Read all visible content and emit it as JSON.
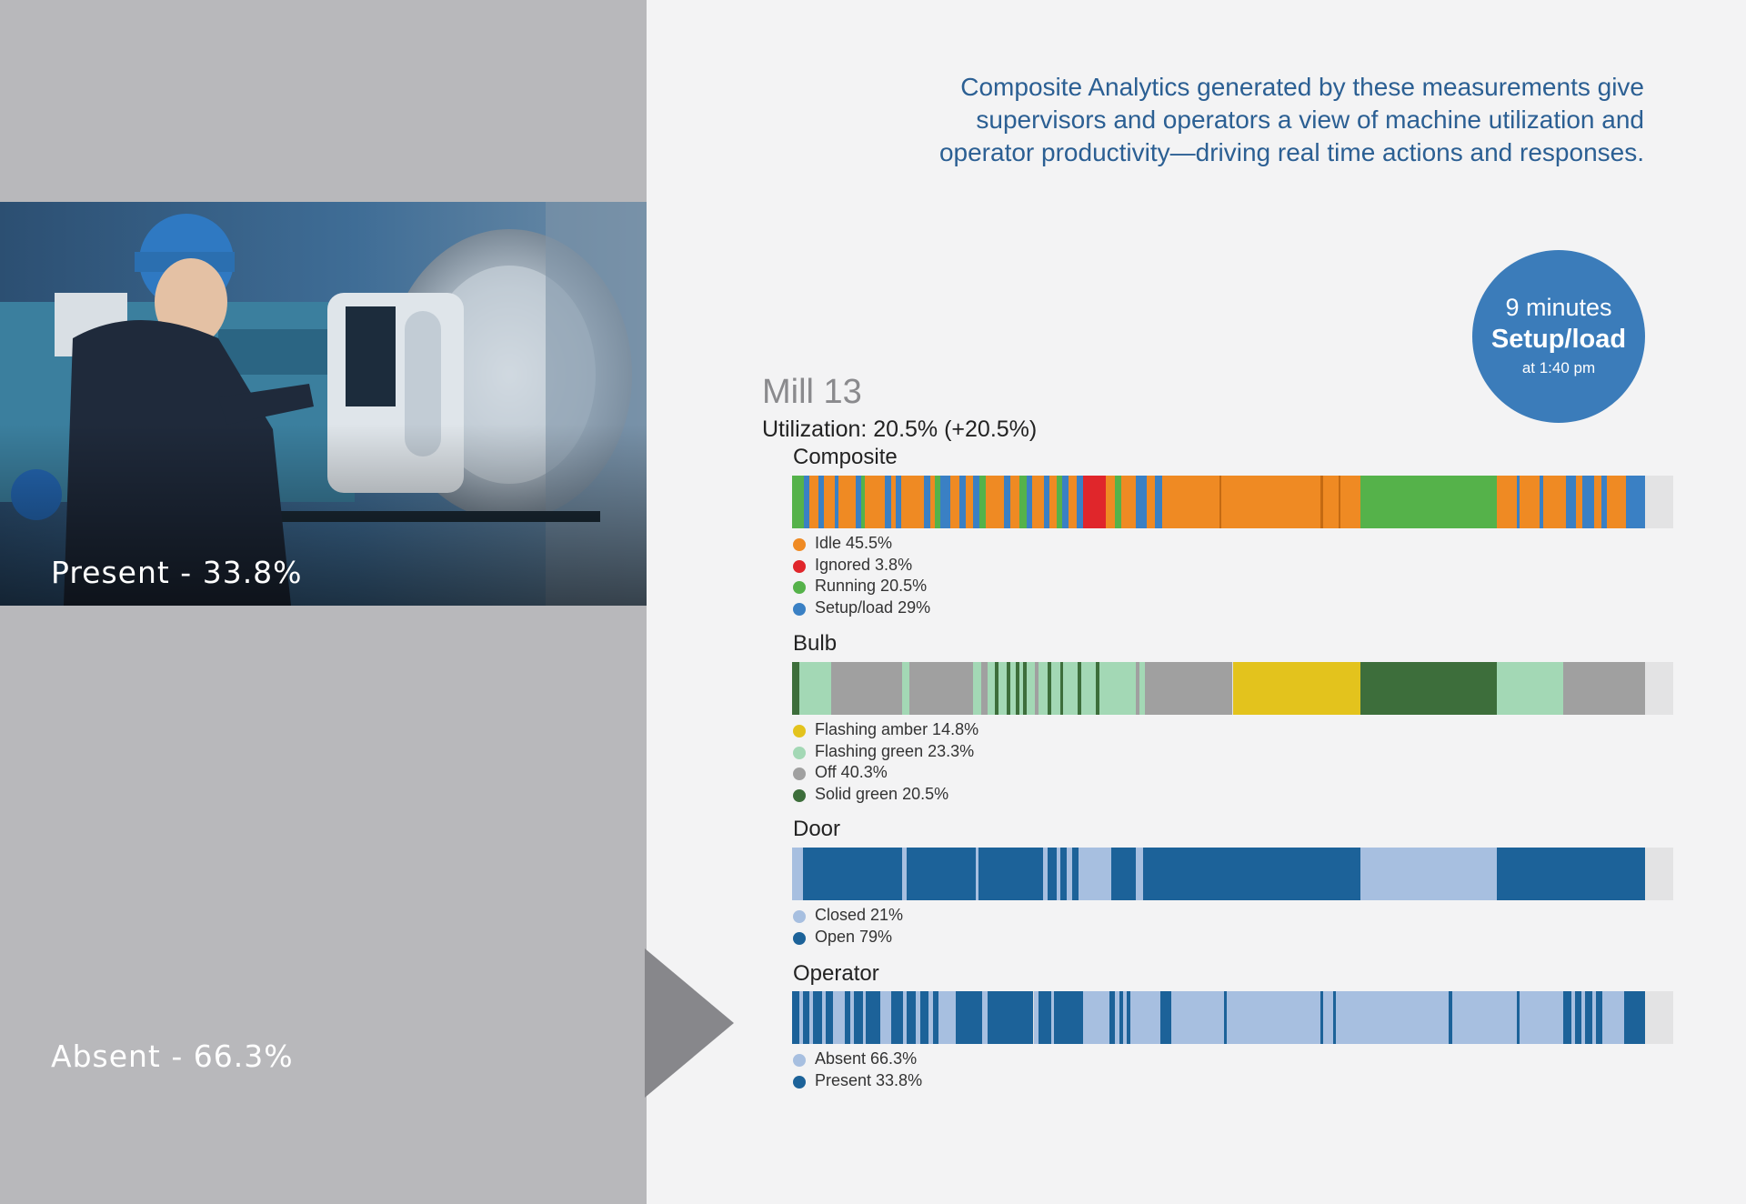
{
  "intro": {
    "line1": "Composite Analytics generated by these measurements give",
    "line2": "supervisors and operators a view of machine utilization and",
    "line3": "operator productivity—driving real time actions and responses."
  },
  "photo_overlay": {
    "present_label": "Present - 33.8%",
    "absent_label": "Absent - 66.3%"
  },
  "badge": {
    "line1": "9 minutes",
    "line2": "Setup/load",
    "line3": "at 1:40 pm"
  },
  "machine": {
    "name": "Mill 13",
    "utilization": "Utilization: 20.5% (+20.5%)"
  },
  "chart_data": [
    {
      "type": "bar",
      "title": "Composite",
      "x_range": [
        0,
        1
      ],
      "legend": [
        {
          "label": "Idle 45.5%",
          "color": "#ef8a23"
        },
        {
          "label": "Ignored 3.8%",
          "color": "#e0262b"
        },
        {
          "label": "Running 20.5%",
          "color": "#55b24a"
        },
        {
          "label": "Setup/load 29%",
          "color": "#3a80c4"
        }
      ],
      "segments": [
        {
          "start": 0.0,
          "end": 0.013,
          "color": "#55b24a"
        },
        {
          "start": 0.013,
          "end": 0.02,
          "color": "#3a80c4"
        },
        {
          "start": 0.02,
          "end": 0.03,
          "color": "#ef8a23"
        },
        {
          "start": 0.03,
          "end": 0.036,
          "color": "#3a80c4"
        },
        {
          "start": 0.036,
          "end": 0.048,
          "color": "#ef8a23"
        },
        {
          "start": 0.048,
          "end": 0.053,
          "color": "#3a80c4"
        },
        {
          "start": 0.053,
          "end": 0.072,
          "color": "#ef8a23"
        },
        {
          "start": 0.072,
          "end": 0.078,
          "color": "#3a80c4"
        },
        {
          "start": 0.078,
          "end": 0.083,
          "color": "#55b24a"
        },
        {
          "start": 0.083,
          "end": 0.105,
          "color": "#ef8a23"
        },
        {
          "start": 0.105,
          "end": 0.112,
          "color": "#3a80c4"
        },
        {
          "start": 0.112,
          "end": 0.118,
          "color": "#ef8a23"
        },
        {
          "start": 0.118,
          "end": 0.124,
          "color": "#3a80c4"
        },
        {
          "start": 0.124,
          "end": 0.15,
          "color": "#ef8a23"
        },
        {
          "start": 0.15,
          "end": 0.157,
          "color": "#3a80c4"
        },
        {
          "start": 0.157,
          "end": 0.162,
          "color": "#ef8a23"
        },
        {
          "start": 0.162,
          "end": 0.168,
          "color": "#55b24a"
        },
        {
          "start": 0.168,
          "end": 0.18,
          "color": "#3a80c4"
        },
        {
          "start": 0.18,
          "end": 0.19,
          "color": "#ef8a23"
        },
        {
          "start": 0.19,
          "end": 0.197,
          "color": "#3a80c4"
        },
        {
          "start": 0.197,
          "end": 0.205,
          "color": "#ef8a23"
        },
        {
          "start": 0.205,
          "end": 0.213,
          "color": "#3a80c4"
        },
        {
          "start": 0.213,
          "end": 0.22,
          "color": "#55b24a"
        },
        {
          "start": 0.22,
          "end": 0.24,
          "color": "#ef8a23"
        },
        {
          "start": 0.24,
          "end": 0.248,
          "color": "#3a80c4"
        },
        {
          "start": 0.248,
          "end": 0.258,
          "color": "#ef8a23"
        },
        {
          "start": 0.258,
          "end": 0.266,
          "color": "#55b24a"
        },
        {
          "start": 0.266,
          "end": 0.272,
          "color": "#3a80c4"
        },
        {
          "start": 0.272,
          "end": 0.286,
          "color": "#ef8a23"
        },
        {
          "start": 0.286,
          "end": 0.292,
          "color": "#3a80c4"
        },
        {
          "start": 0.292,
          "end": 0.3,
          "color": "#ef8a23"
        },
        {
          "start": 0.3,
          "end": 0.306,
          "color": "#55b24a"
        },
        {
          "start": 0.306,
          "end": 0.314,
          "color": "#3a80c4"
        },
        {
          "start": 0.314,
          "end": 0.323,
          "color": "#ef8a23"
        },
        {
          "start": 0.323,
          "end": 0.33,
          "color": "#3a80c4"
        },
        {
          "start": 0.33,
          "end": 0.356,
          "color": "#e0262b"
        },
        {
          "start": 0.356,
          "end": 0.366,
          "color": "#ef8a23"
        },
        {
          "start": 0.366,
          "end": 0.374,
          "color": "#55b24a"
        },
        {
          "start": 0.374,
          "end": 0.39,
          "color": "#ef8a23"
        },
        {
          "start": 0.39,
          "end": 0.402,
          "color": "#3a80c4"
        },
        {
          "start": 0.402,
          "end": 0.412,
          "color": "#ef8a23"
        },
        {
          "start": 0.412,
          "end": 0.42,
          "color": "#3a80c4"
        },
        {
          "start": 0.42,
          "end": 0.485,
          "color": "#ef8a23"
        },
        {
          "start": 0.485,
          "end": 0.487,
          "color": "#c46a12"
        },
        {
          "start": 0.487,
          "end": 0.6,
          "color": "#ef8a23"
        },
        {
          "start": 0.6,
          "end": 0.603,
          "color": "#c46a12"
        },
        {
          "start": 0.603,
          "end": 0.62,
          "color": "#ef8a23"
        },
        {
          "start": 0.62,
          "end": 0.622,
          "color": "#c46a12"
        },
        {
          "start": 0.622,
          "end": 0.645,
          "color": "#ef8a23"
        },
        {
          "start": 0.645,
          "end": 0.8,
          "color": "#55b24a"
        },
        {
          "start": 0.8,
          "end": 0.822,
          "color": "#ef8a23"
        },
        {
          "start": 0.822,
          "end": 0.826,
          "color": "#3a80c4"
        },
        {
          "start": 0.826,
          "end": 0.848,
          "color": "#ef8a23"
        },
        {
          "start": 0.848,
          "end": 0.852,
          "color": "#3a80c4"
        },
        {
          "start": 0.852,
          "end": 0.878,
          "color": "#ef8a23"
        },
        {
          "start": 0.878,
          "end": 0.89,
          "color": "#3a80c4"
        },
        {
          "start": 0.89,
          "end": 0.897,
          "color": "#ef8a23"
        },
        {
          "start": 0.897,
          "end": 0.91,
          "color": "#3a80c4"
        },
        {
          "start": 0.91,
          "end": 0.918,
          "color": "#ef8a23"
        },
        {
          "start": 0.918,
          "end": 0.925,
          "color": "#3a80c4"
        },
        {
          "start": 0.925,
          "end": 0.946,
          "color": "#ef8a23"
        },
        {
          "start": 0.946,
          "end": 0.968,
          "color": "#3a80c4"
        }
      ]
    },
    {
      "type": "bar",
      "title": "Bulb",
      "x_range": [
        0,
        1
      ],
      "legend": [
        {
          "label": "Flashing amber 14.8%",
          "color": "#e3c31d"
        },
        {
          "label": "Flashing green 23.3%",
          "color": "#a3d8b5"
        },
        {
          "label": "Off 40.3%",
          "color": "#a0a0a0"
        },
        {
          "label": "Solid green 20.5%",
          "color": "#3d6e3b"
        }
      ],
      "segments": [
        {
          "start": 0.0,
          "end": 0.008,
          "color": "#3d6e3b"
        },
        {
          "start": 0.008,
          "end": 0.044,
          "color": "#a3d8b5"
        },
        {
          "start": 0.044,
          "end": 0.125,
          "color": "#a0a0a0"
        },
        {
          "start": 0.125,
          "end": 0.133,
          "color": "#a3d8b5"
        },
        {
          "start": 0.133,
          "end": 0.205,
          "color": "#a0a0a0"
        },
        {
          "start": 0.205,
          "end": 0.215,
          "color": "#a3d8b5"
        },
        {
          "start": 0.215,
          "end": 0.222,
          "color": "#a0a0a0"
        },
        {
          "start": 0.222,
          "end": 0.23,
          "color": "#a3d8b5"
        },
        {
          "start": 0.23,
          "end": 0.234,
          "color": "#3d6e3b"
        },
        {
          "start": 0.234,
          "end": 0.244,
          "color": "#a3d8b5"
        },
        {
          "start": 0.244,
          "end": 0.248,
          "color": "#3d6e3b"
        },
        {
          "start": 0.248,
          "end": 0.254,
          "color": "#a3d8b5"
        },
        {
          "start": 0.254,
          "end": 0.258,
          "color": "#3d6e3b"
        },
        {
          "start": 0.258,
          "end": 0.262,
          "color": "#a3d8b5"
        },
        {
          "start": 0.262,
          "end": 0.266,
          "color": "#3d6e3b"
        },
        {
          "start": 0.266,
          "end": 0.276,
          "color": "#a3d8b5"
        },
        {
          "start": 0.276,
          "end": 0.28,
          "color": "#a0a0a0"
        },
        {
          "start": 0.28,
          "end": 0.29,
          "color": "#a3d8b5"
        },
        {
          "start": 0.29,
          "end": 0.294,
          "color": "#3d6e3b"
        },
        {
          "start": 0.294,
          "end": 0.304,
          "color": "#a3d8b5"
        },
        {
          "start": 0.304,
          "end": 0.308,
          "color": "#3d6e3b"
        },
        {
          "start": 0.308,
          "end": 0.324,
          "color": "#a3d8b5"
        },
        {
          "start": 0.324,
          "end": 0.328,
          "color": "#3d6e3b"
        },
        {
          "start": 0.328,
          "end": 0.345,
          "color": "#a3d8b5"
        },
        {
          "start": 0.345,
          "end": 0.349,
          "color": "#3d6e3b"
        },
        {
          "start": 0.349,
          "end": 0.39,
          "color": "#a3d8b5"
        },
        {
          "start": 0.39,
          "end": 0.394,
          "color": "#a0a0a0"
        },
        {
          "start": 0.394,
          "end": 0.4,
          "color": "#a3d8b5"
        },
        {
          "start": 0.4,
          "end": 0.404,
          "color": "#a0a0a0"
        },
        {
          "start": 0.404,
          "end": 0.5,
          "color": "#a0a0a0"
        },
        {
          "start": 0.5,
          "end": 0.645,
          "color": "#e3c31d"
        },
        {
          "start": 0.645,
          "end": 0.8,
          "color": "#3d6e3b"
        },
        {
          "start": 0.8,
          "end": 0.875,
          "color": "#a3d8b5"
        },
        {
          "start": 0.875,
          "end": 0.968,
          "color": "#a0a0a0"
        }
      ]
    },
    {
      "type": "bar",
      "title": "Door",
      "x_range": [
        0,
        1
      ],
      "legend": [
        {
          "label": "Closed 21%",
          "color": "#a7bfe0"
        },
        {
          "label": "Open 79%",
          "color": "#1c6299"
        }
      ],
      "segments": [
        {
          "start": 0.0,
          "end": 0.012,
          "color": "#a7bfe0"
        },
        {
          "start": 0.012,
          "end": 0.125,
          "color": "#1c6299"
        },
        {
          "start": 0.125,
          "end": 0.13,
          "color": "#a7bfe0"
        },
        {
          "start": 0.13,
          "end": 0.208,
          "color": "#1c6299"
        },
        {
          "start": 0.208,
          "end": 0.212,
          "color": "#a7bfe0"
        },
        {
          "start": 0.212,
          "end": 0.285,
          "color": "#1c6299"
        },
        {
          "start": 0.285,
          "end": 0.29,
          "color": "#a7bfe0"
        },
        {
          "start": 0.29,
          "end": 0.3,
          "color": "#1c6299"
        },
        {
          "start": 0.3,
          "end": 0.304,
          "color": "#a7bfe0"
        },
        {
          "start": 0.304,
          "end": 0.312,
          "color": "#1c6299"
        },
        {
          "start": 0.312,
          "end": 0.318,
          "color": "#a7bfe0"
        },
        {
          "start": 0.318,
          "end": 0.325,
          "color": "#1c6299"
        },
        {
          "start": 0.325,
          "end": 0.362,
          "color": "#a7bfe0"
        },
        {
          "start": 0.362,
          "end": 0.39,
          "color": "#1c6299"
        },
        {
          "start": 0.39,
          "end": 0.398,
          "color": "#a7bfe0"
        },
        {
          "start": 0.398,
          "end": 0.645,
          "color": "#1c6299"
        },
        {
          "start": 0.645,
          "end": 0.8,
          "color": "#a7bfe0"
        },
        {
          "start": 0.8,
          "end": 0.968,
          "color": "#1c6299"
        }
      ]
    },
    {
      "type": "bar",
      "title": "Operator",
      "x_range": [
        0,
        1
      ],
      "legend": [
        {
          "label": "Absent 66.3%",
          "color": "#a7bfe0"
        },
        {
          "label": "Present 33.8%",
          "color": "#1c6299"
        }
      ],
      "segments": [
        {
          "start": 0.0,
          "end": 0.008,
          "color": "#1c6299"
        },
        {
          "start": 0.008,
          "end": 0.012,
          "color": "#a7bfe0"
        },
        {
          "start": 0.012,
          "end": 0.02,
          "color": "#1c6299"
        },
        {
          "start": 0.02,
          "end": 0.024,
          "color": "#a7bfe0"
        },
        {
          "start": 0.024,
          "end": 0.034,
          "color": "#1c6299"
        },
        {
          "start": 0.034,
          "end": 0.038,
          "color": "#a7bfe0"
        },
        {
          "start": 0.038,
          "end": 0.046,
          "color": "#1c6299"
        },
        {
          "start": 0.046,
          "end": 0.06,
          "color": "#a7bfe0"
        },
        {
          "start": 0.06,
          "end": 0.066,
          "color": "#1c6299"
        },
        {
          "start": 0.066,
          "end": 0.07,
          "color": "#a7bfe0"
        },
        {
          "start": 0.07,
          "end": 0.08,
          "color": "#1c6299"
        },
        {
          "start": 0.08,
          "end": 0.084,
          "color": "#a7bfe0"
        },
        {
          "start": 0.084,
          "end": 0.1,
          "color": "#1c6299"
        },
        {
          "start": 0.1,
          "end": 0.112,
          "color": "#a7bfe0"
        },
        {
          "start": 0.112,
          "end": 0.126,
          "color": "#1c6299"
        },
        {
          "start": 0.126,
          "end": 0.13,
          "color": "#a7bfe0"
        },
        {
          "start": 0.13,
          "end": 0.14,
          "color": "#1c6299"
        },
        {
          "start": 0.14,
          "end": 0.145,
          "color": "#a7bfe0"
        },
        {
          "start": 0.145,
          "end": 0.155,
          "color": "#1c6299"
        },
        {
          "start": 0.155,
          "end": 0.16,
          "color": "#a7bfe0"
        },
        {
          "start": 0.16,
          "end": 0.166,
          "color": "#1c6299"
        },
        {
          "start": 0.166,
          "end": 0.186,
          "color": "#a7bfe0"
        },
        {
          "start": 0.186,
          "end": 0.216,
          "color": "#1c6299"
        },
        {
          "start": 0.216,
          "end": 0.222,
          "color": "#a7bfe0"
        },
        {
          "start": 0.222,
          "end": 0.274,
          "color": "#1c6299"
        },
        {
          "start": 0.274,
          "end": 0.28,
          "color": "#a7bfe0"
        },
        {
          "start": 0.28,
          "end": 0.294,
          "color": "#1c6299"
        },
        {
          "start": 0.294,
          "end": 0.297,
          "color": "#a7bfe0"
        },
        {
          "start": 0.297,
          "end": 0.33,
          "color": "#1c6299"
        },
        {
          "start": 0.33,
          "end": 0.36,
          "color": "#a7bfe0"
        },
        {
          "start": 0.36,
          "end": 0.366,
          "color": "#1c6299"
        },
        {
          "start": 0.366,
          "end": 0.372,
          "color": "#a7bfe0"
        },
        {
          "start": 0.372,
          "end": 0.376,
          "color": "#1c6299"
        },
        {
          "start": 0.376,
          "end": 0.38,
          "color": "#a7bfe0"
        },
        {
          "start": 0.38,
          "end": 0.384,
          "color": "#1c6299"
        },
        {
          "start": 0.384,
          "end": 0.418,
          "color": "#a7bfe0"
        },
        {
          "start": 0.418,
          "end": 0.43,
          "color": "#1c6299"
        },
        {
          "start": 0.43,
          "end": 0.49,
          "color": "#a7bfe0"
        },
        {
          "start": 0.49,
          "end": 0.493,
          "color": "#1c6299"
        },
        {
          "start": 0.493,
          "end": 0.6,
          "color": "#a7bfe0"
        },
        {
          "start": 0.6,
          "end": 0.603,
          "color": "#1c6299"
        },
        {
          "start": 0.603,
          "end": 0.614,
          "color": "#a7bfe0"
        },
        {
          "start": 0.614,
          "end": 0.617,
          "color": "#1c6299"
        },
        {
          "start": 0.617,
          "end": 0.745,
          "color": "#a7bfe0"
        },
        {
          "start": 0.745,
          "end": 0.749,
          "color": "#1c6299"
        },
        {
          "start": 0.749,
          "end": 0.822,
          "color": "#a7bfe0"
        },
        {
          "start": 0.822,
          "end": 0.826,
          "color": "#1c6299"
        },
        {
          "start": 0.826,
          "end": 0.875,
          "color": "#a7bfe0"
        },
        {
          "start": 0.875,
          "end": 0.884,
          "color": "#1c6299"
        },
        {
          "start": 0.884,
          "end": 0.889,
          "color": "#a7bfe0"
        },
        {
          "start": 0.889,
          "end": 0.896,
          "color": "#1c6299"
        },
        {
          "start": 0.896,
          "end": 0.9,
          "color": "#a7bfe0"
        },
        {
          "start": 0.9,
          "end": 0.908,
          "color": "#1c6299"
        },
        {
          "start": 0.908,
          "end": 0.912,
          "color": "#a7bfe0"
        },
        {
          "start": 0.912,
          "end": 0.92,
          "color": "#1c6299"
        },
        {
          "start": 0.92,
          "end": 0.944,
          "color": "#a7bfe0"
        },
        {
          "start": 0.944,
          "end": 0.968,
          "color": "#1c6299"
        }
      ]
    }
  ]
}
